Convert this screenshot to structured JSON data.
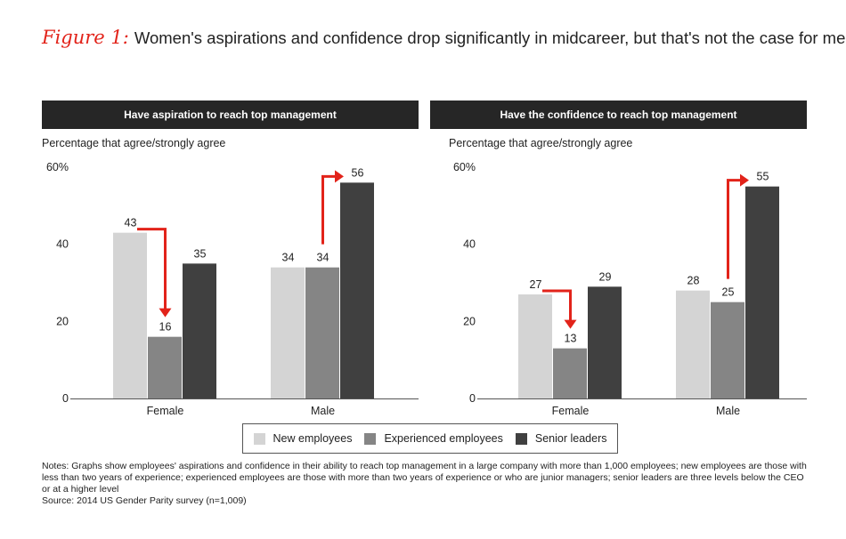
{
  "figure": {
    "label": "Figure 1:",
    "title": "Women's aspirations and confidence drop significantly in midcareer, but that's not the case for men"
  },
  "colors": {
    "new_employees": "#d4d4d4",
    "experienced_employees": "#858585",
    "senior_leaders": "#404040",
    "arrow": "#e2231a",
    "header_bg": "#262626"
  },
  "legend": [
    {
      "name": "New employees",
      "color_key": "new_employees"
    },
    {
      "name": "Experienced employees",
      "color_key": "experienced_employees"
    },
    {
      "name": "Senior leaders",
      "color_key": "senior_leaders"
    }
  ],
  "chart_data": [
    {
      "type": "bar",
      "title": "Have aspiration to reach top management",
      "ylabel": "Percentage that agree/strongly agree",
      "categories": [
        "Female",
        "Male"
      ],
      "series": [
        {
          "name": "New employees",
          "values": [
            43,
            34
          ]
        },
        {
          "name": "Experienced employees",
          "values": [
            16,
            34
          ]
        },
        {
          "name": "Senior leaders",
          "values": [
            35,
            56
          ]
        }
      ],
      "yticks": [
        "0",
        "20",
        "40",
        "60%"
      ],
      "ylim": [
        0,
        60
      ],
      "arrows": [
        {
          "category": "Female",
          "from": "New employees",
          "to": "Experienced employees",
          "direction": "down"
        },
        {
          "category": "Male",
          "from": "Experienced employees",
          "to": "Senior leaders",
          "direction": "up"
        }
      ]
    },
    {
      "type": "bar",
      "title": "Have the confidence to reach top management",
      "ylabel": "Percentage that agree/strongly agree",
      "categories": [
        "Female",
        "Male"
      ],
      "series": [
        {
          "name": "New employees",
          "values": [
            27,
            28
          ]
        },
        {
          "name": "Experienced employees",
          "values": [
            13,
            25
          ]
        },
        {
          "name": "Senior leaders",
          "values": [
            29,
            55
          ]
        }
      ],
      "yticks": [
        "0",
        "20",
        "40",
        "60%"
      ],
      "ylim": [
        0,
        60
      ],
      "arrows": [
        {
          "category": "Female",
          "from": "New employees",
          "to": "Experienced employees",
          "direction": "down"
        },
        {
          "category": "Male",
          "from": "Experienced employees",
          "to": "Senior leaders",
          "direction": "up"
        }
      ]
    }
  ],
  "notes": {
    "text": "Notes: Graphs show employees' aspirations and confidence in their ability to reach top management in a large company with more than 1,000 employees; new employees are those with less than two years of experience; experienced employees are those with more than two years of experience or who are junior managers; senior leaders are three levels below the CEO or at a higher level",
    "source": "Source: 2014 US Gender Parity survey (n=1,009)"
  }
}
